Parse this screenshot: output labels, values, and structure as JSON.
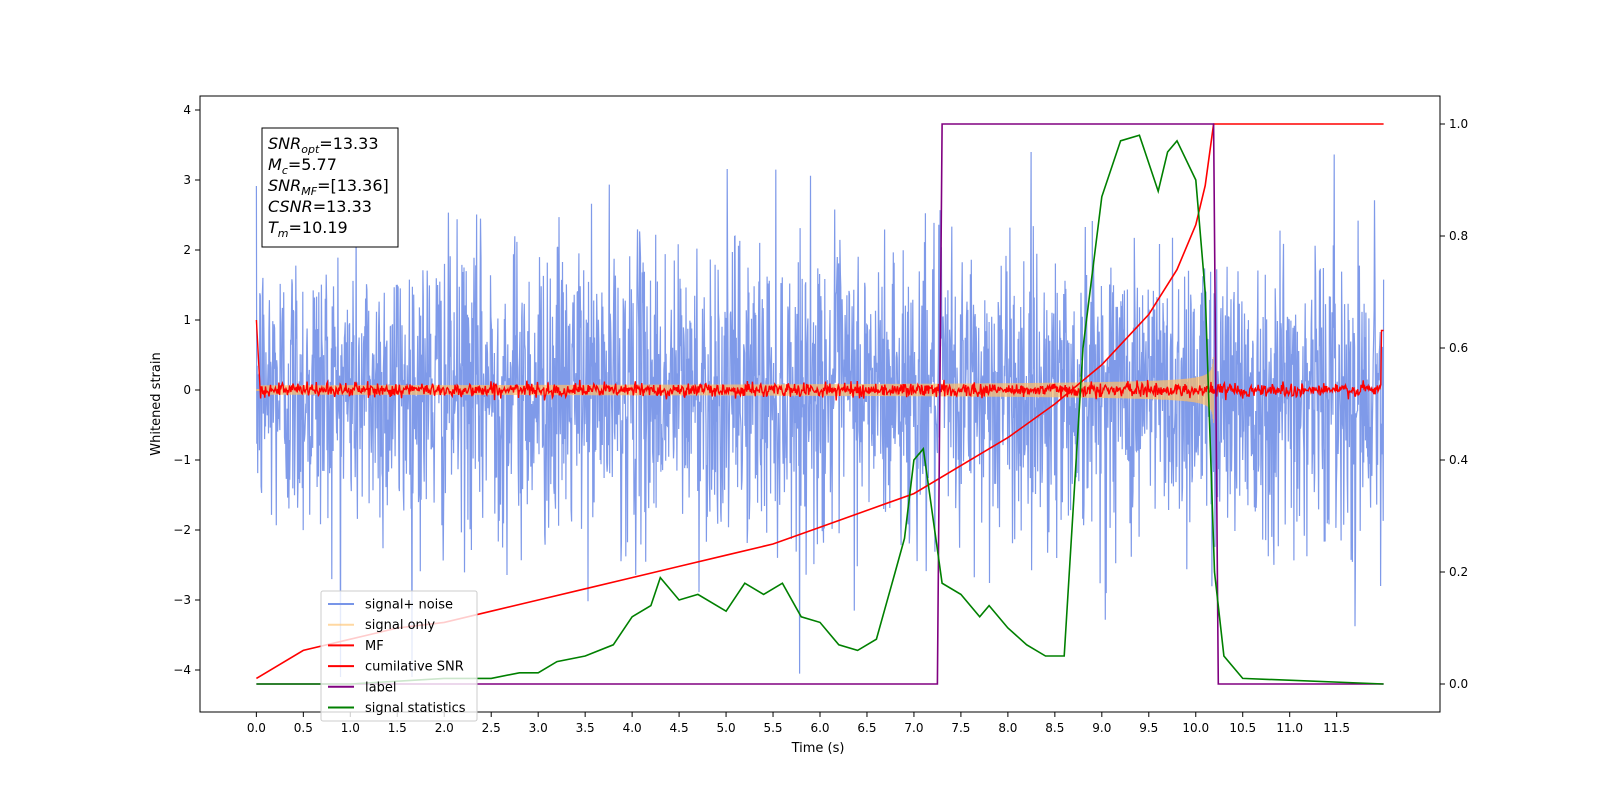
{
  "chart_data": {
    "type": "line",
    "xlabel": "Time (s)",
    "ylabel_left": "Whitened strain",
    "ylabel_right": "",
    "xlim": [
      -0.6,
      12.6
    ],
    "ylim_left": [
      -4.6,
      4.2
    ],
    "ylim_right": [
      -0.05,
      1.05
    ],
    "x_ticks": [
      "0.0",
      "0.5",
      "1.0",
      "1.5",
      "2.0",
      "2.5",
      "3.0",
      "3.5",
      "4.0",
      "4.5",
      "5.0",
      "5.5",
      "6.0",
      "6.5",
      "7.0",
      "7.5",
      "8.0",
      "8.5",
      "9.0",
      "9.5",
      "10.0",
      "10.5",
      "11.0",
      "11.5"
    ],
    "y_ticks_left": [
      "4",
      "3",
      "2",
      "1",
      "0",
      "−1",
      "−2",
      "−3",
      "−4"
    ],
    "y_ticks_right": [
      "1.0",
      "0.8",
      "0.6",
      "0.4",
      "0.2",
      "0.0"
    ],
    "grid": false,
    "legend_position": "lower-left",
    "annotation": [
      {
        "sym": "SNR",
        "sub": "opt",
        "val": "=13.33"
      },
      {
        "sym": "M",
        "sub": "c",
        "val": "=5.77"
      },
      {
        "sym": "SNR",
        "sub": "MF",
        "val": "=[13.36]"
      },
      {
        "sym": "CSNR",
        "sub": "",
        "val": "=13.33"
      },
      {
        "sym": "T",
        "sub": "m",
        "val": "=10.19"
      }
    ],
    "series": [
      {
        "name": "signal+ noise",
        "color": "#7895e8",
        "axis": "left",
        "kind": "noise",
        "std": 1.0,
        "x_range": [
          0,
          12
        ]
      },
      {
        "name": "signal only",
        "color": "#ffbf66",
        "axis": "left",
        "kind": "chirp",
        "merger_time": 10.19
      },
      {
        "name": "MF",
        "color": "#ff0000",
        "axis": "left",
        "kind": "noise",
        "std": 0.05,
        "x_range": [
          0,
          12
        ]
      },
      {
        "name": "cumilative SNR",
        "color": "#ff0000",
        "axis": "right",
        "x": [
          0,
          0.5,
          1,
          1.5,
          2,
          2.5,
          3,
          3.5,
          4,
          4.5,
          5,
          5.5,
          6,
          6.5,
          7,
          7.5,
          8,
          8.5,
          9,
          9.5,
          9.8,
          10,
          10.1,
          10.19,
          12
        ],
        "y": [
          0.01,
          0.06,
          0.08,
          0.1,
          0.11,
          0.13,
          0.15,
          0.17,
          0.19,
          0.21,
          0.23,
          0.25,
          0.28,
          0.31,
          0.34,
          0.39,
          0.44,
          0.5,
          0.57,
          0.66,
          0.74,
          0.82,
          0.89,
          1.0,
          1.0
        ]
      },
      {
        "name": "label",
        "color": "#800080",
        "axis": "right",
        "x": [
          0,
          7.25,
          7.3,
          10.19,
          10.24,
          12
        ],
        "y": [
          0,
          0,
          1,
          1,
          0,
          0
        ]
      },
      {
        "name": "signal statistics",
        "color": "#008000",
        "axis": "right",
        "x": [
          0,
          1,
          2,
          2.5,
          2.8,
          3,
          3.2,
          3.5,
          3.8,
          4,
          4.2,
          4.3,
          4.5,
          4.7,
          5,
          5.2,
          5.4,
          5.6,
          5.8,
          6,
          6.2,
          6.4,
          6.6,
          6.8,
          6.9,
          7.0,
          7.1,
          7.2,
          7.3,
          7.5,
          7.7,
          7.8,
          8.0,
          8.2,
          8.4,
          8.6,
          8.8,
          9.0,
          9.2,
          9.4,
          9.6,
          9.7,
          9.8,
          10.0,
          10.1,
          10.2,
          10.3,
          10.5,
          12
        ],
        "y": [
          0,
          0,
          0.01,
          0.01,
          0.02,
          0.02,
          0.04,
          0.05,
          0.07,
          0.12,
          0.14,
          0.19,
          0.15,
          0.16,
          0.13,
          0.18,
          0.16,
          0.18,
          0.12,
          0.11,
          0.07,
          0.06,
          0.08,
          0.2,
          0.26,
          0.4,
          0.42,
          0.3,
          0.18,
          0.16,
          0.12,
          0.14,
          0.1,
          0.07,
          0.05,
          0.05,
          0.6,
          0.87,
          0.97,
          0.98,
          0.88,
          0.95,
          0.97,
          0.9,
          0.7,
          0.2,
          0.05,
          0.01,
          0.0
        ]
      }
    ]
  }
}
